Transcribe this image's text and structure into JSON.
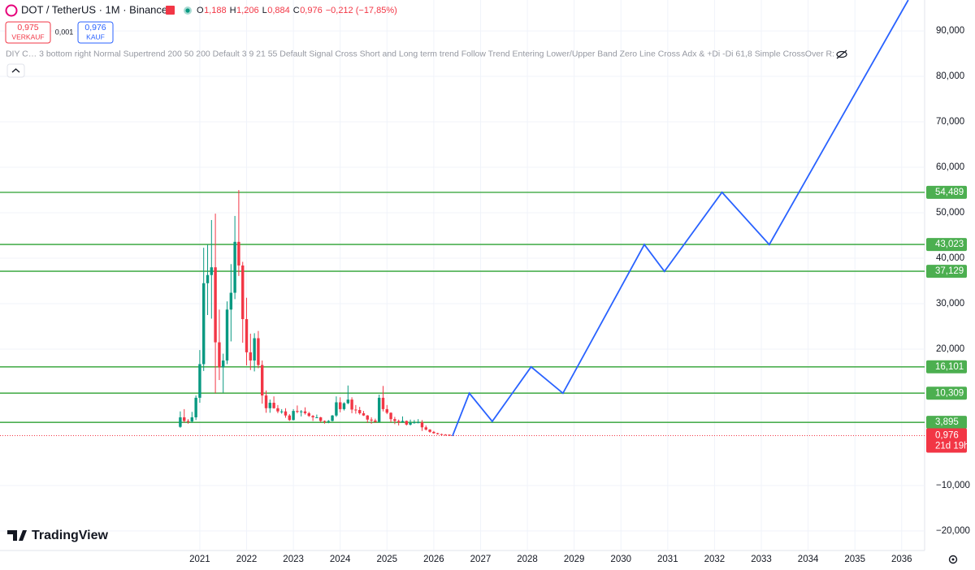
{
  "header": {
    "symbol": "DOT / TetherUS · 1M · Binance",
    "quote": [
      {
        "key": "O",
        "value": "1,188"
      },
      {
        "key": "H",
        "value": "1,206"
      },
      {
        "key": "L",
        "value": "0,884"
      },
      {
        "key": "C",
        "value": "0,976"
      }
    ],
    "change": "−0,212 (−17,85%)",
    "sell": {
      "price": "0,975",
      "label": "VERKAUF"
    },
    "spread": "0,001",
    "buy": {
      "price": "0,976",
      "label": "KAUF"
    },
    "indicator": "DIY C… 3 bottom right Normal Supertrend 200 50 200 Default 3 9 21 55 Default Signal Cross Short and Long term trend Follow Trend Entering Lower/Upper Band Zero Line Cross Adx & +Di -Di 61,8 Simple CrossOver R:"
  },
  "watermark": "TradingView",
  "chart_data": {
    "type": "candlestick",
    "up_color": "#089981",
    "down_color": "#f23645",
    "x": [
      2020.583,
      2020.667,
      2020.75,
      2020.833,
      2020.917,
      2021,
      2021.083,
      2021.167,
      2021.25,
      2021.333,
      2021.417,
      2021.5,
      2021.583,
      2021.667,
      2021.75,
      2021.833,
      2021.917,
      2022,
      2022.083,
      2022.167,
      2022.25,
      2022.333,
      2022.417,
      2022.5,
      2022.583,
      2022.667,
      2022.75,
      2022.833,
      2022.917,
      2023,
      2023.083,
      2023.167,
      2023.25,
      2023.333,
      2023.417,
      2023.5,
      2023.583,
      2023.667,
      2023.75,
      2023.833,
      2023.917,
      2024,
      2024.083,
      2024.167,
      2024.25,
      2024.333,
      2024.417,
      2024.5,
      2024.583,
      2024.667,
      2024.75,
      2024.833,
      2024.917,
      2025,
      2025.083,
      2025.167,
      2025.25,
      2025.333,
      2025.417,
      2025.5,
      2025.583,
      2025.667,
      2025.75,
      2025.833,
      2025.917,
      2026,
      2026.083,
      2026.167,
      2026.25,
      2026.333
    ],
    "open": [
      2.9,
      5.0,
      4.2,
      4.1,
      5.0,
      9.3,
      16.7,
      34.5,
      36.3,
      38.0,
      21.5,
      16.0,
      17.5,
      28.7,
      32.4,
      43.6,
      38.4,
      26.6,
      19.3,
      17.5,
      22.4,
      16.5,
      9.8,
      7.0,
      8.2,
      7.0,
      6.3,
      6.3,
      5.4,
      4.4,
      6.4,
      6.2,
      6.3,
      5.9,
      5.3,
      5.0,
      5.0,
      4.2,
      4.1,
      4.2,
      5.4,
      8.3,
      6.8,
      8.1,
      8.9,
      6.7,
      6.6,
      5.9,
      5.4,
      4.5,
      4.3,
      4.0,
      9.3,
      6.8,
      6.0,
      4.6,
      4.2,
      3.9,
      4.2,
      3.4,
      3.8,
      3.9,
      3.9,
      2.8,
      2.3,
      1.8,
      1.5,
      1.3,
      1.2,
      1.188
    ],
    "high": [
      6.3,
      6.8,
      4.6,
      6.2,
      9.8,
      19.8,
      42.3,
      43,
      48.4,
      49.8,
      28.7,
      19.0,
      30.5,
      38.7,
      49.3,
      55.0,
      39.2,
      31.3,
      23.4,
      23.5,
      24.0,
      17.5,
      10.9,
      8.9,
      9.6,
      7.7,
      6.8,
      7.0,
      5.7,
      6.8,
      7.6,
      6.6,
      7.2,
      6.2,
      5.5,
      5.6,
      5.1,
      4.3,
      4.4,
      5.5,
      9.6,
      9.4,
      8.3,
      12.0,
      9.4,
      7.7,
      7.3,
      6.4,
      5.5,
      5.0,
      4.7,
      10.0,
      11.9,
      7.7,
      6.1,
      5.1,
      4.5,
      5.2,
      4.3,
      4.5,
      4.4,
      4.6,
      4.4,
      3.2,
      2.4,
      2.0,
      1.6,
      1.4,
      1.3,
      1.206
    ],
    "low": [
      2.7,
      3.8,
      3.6,
      3.8,
      4.4,
      8.2,
      15.2,
      27.5,
      26.7,
      10.3,
      13.2,
      10.4,
      16.7,
      21.7,
      31.0,
      36.1,
      21.4,
      16.4,
      15.4,
      15.1,
      15.8,
      8.0,
      6.0,
      6.0,
      6.9,
      5.9,
      5.8,
      4.9,
      4.2,
      4.3,
      5.9,
      5.2,
      5.6,
      5.1,
      4.2,
      4.9,
      3.9,
      3.6,
      3.7,
      4.1,
      5.1,
      6.1,
      6.5,
      7.9,
      5.9,
      5.8,
      5.6,
      5.3,
      3.8,
      3.6,
      3.8,
      3.9,
      6.3,
      5.7,
      3.9,
      3.5,
      3.2,
      3.9,
      3.2,
      3.2,
      3.6,
      3.7,
      2.0,
      2.1,
      1.6,
      1.4,
      1.2,
      1.1,
      1.0,
      0.884
    ],
    "close": [
      5.0,
      4.2,
      4.1,
      5.0,
      9.3,
      16.7,
      34.5,
      36.3,
      38.0,
      21.5,
      16.0,
      17.5,
      28.7,
      32.4,
      43.6,
      38.4,
      26.6,
      19.3,
      17.5,
      22.4,
      16.5,
      9.8,
      7.0,
      8.2,
      7.0,
      6.3,
      6.3,
      5.4,
      4.4,
      6.4,
      6.2,
      6.3,
      5.9,
      5.3,
      5.0,
      5.0,
      4.2,
      4.1,
      4.2,
      5.4,
      8.3,
      6.8,
      8.1,
      8.9,
      6.7,
      6.6,
      5.9,
      5.4,
      4.5,
      4.3,
      4.0,
      9.3,
      6.8,
      6.0,
      4.6,
      4.2,
      3.9,
      4.2,
      3.4,
      3.8,
      3.9,
      3.9,
      2.8,
      2.3,
      1.8,
      1.5,
      1.3,
      1.2,
      1.19,
      0.976
    ],
    "xlim": [
      2016.73,
      2036.49
    ],
    "ylim": [
      -24.3,
      96.8
    ],
    "xticks": [
      2021,
      2022,
      2023,
      2024,
      2025,
      2026,
      2027,
      2028,
      2029,
      2030,
      2031,
      2032,
      2033,
      2034,
      2035,
      2036
    ],
    "yticks": [
      {
        "value": 90,
        "label": "90,000"
      },
      {
        "value": 80,
        "label": "80,000"
      },
      {
        "value": 70,
        "label": "70,000"
      },
      {
        "value": 60,
        "label": "60,000"
      },
      {
        "value": 50,
        "label": "50,000"
      },
      {
        "value": 40,
        "label": "40,000"
      },
      {
        "value": 30,
        "label": "30,000"
      },
      {
        "value": 20,
        "label": "20,000"
      },
      {
        "value": -10,
        "label": "−10,000"
      },
      {
        "value": -20,
        "label": "−20,000"
      }
    ],
    "grid": true,
    "levels": {
      "color": "#4caf50",
      "values": [
        54.489,
        43.023,
        37.129,
        16.101,
        10.309,
        3.895
      ],
      "value_labels": [
        "54,489",
        "43,023",
        "37,129",
        "16,101",
        "10,309",
        "3,895"
      ]
    },
    "projection": {
      "color": "#2962ff",
      "x": [
        2026.4,
        2026.76,
        2027.25,
        2028.08,
        2028.76,
        2030.5,
        2030.93,
        2032.16,
        2033.17,
        2036.14
      ],
      "values": [
        0.9,
        10.3,
        4.1,
        16.1,
        10.3,
        43.0,
        37.1,
        54.5,
        43.0,
        96.8
      ]
    },
    "last_price": {
      "value": 0.976,
      "label": "0,976",
      "countdown": "21d 19h",
      "color": "#f23645"
    }
  }
}
